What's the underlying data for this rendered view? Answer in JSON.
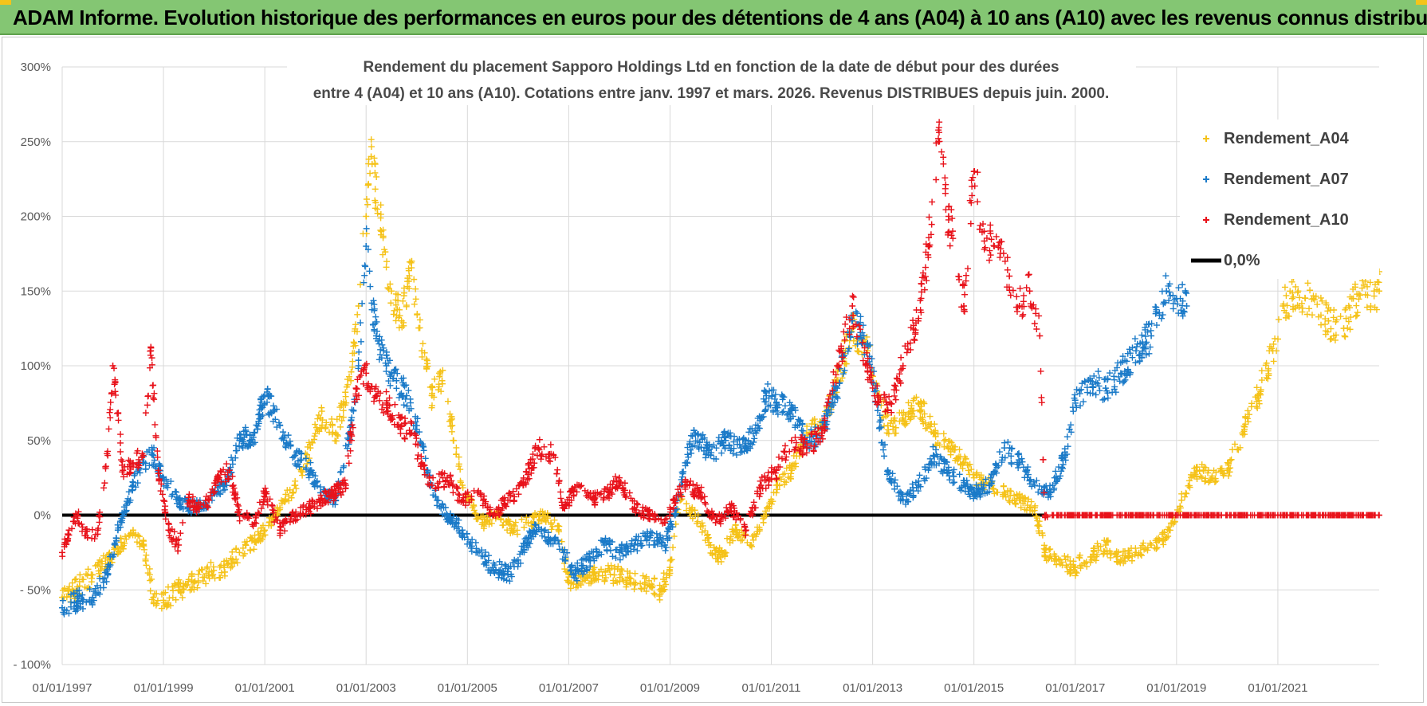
{
  "banner": {
    "title": "ADAM Informe. Evolution historique des performances en euros pour des détentions de 4 ans (A04) à 10 ans (A10) avec les revenus connus distribués",
    "background": "#84c673",
    "accent": "#f4c41a"
  },
  "chart_data": {
    "type": "scatter",
    "title_line1": "Rendement du placement Sapporo Holdings Ltd en fonction de la date de début pour des durées",
    "title_line2": "entre 4 (A04) et 10 ans (A10).  Cotations entre janv. 1997 et mars. 2026.  Revenus DISTRIBUES depuis juin. 2000.",
    "xlabel": "",
    "ylabel": "",
    "xlim": [
      1997.0,
      2023.0
    ],
    "ylim": [
      -100,
      300
    ],
    "y_ticks": [
      300,
      250,
      200,
      150,
      100,
      50,
      0,
      -50,
      -100
    ],
    "y_tick_labels": [
      "300%",
      "250%",
      "200%",
      "150%",
      "100%",
      "50%",
      "0%",
      "- 50%",
      "- 100%"
    ],
    "x_ticks": [
      1997,
      1999,
      2001,
      2003,
      2005,
      2007,
      2009,
      2011,
      2013,
      2015,
      2017,
      2019,
      2021
    ],
    "x_tick_labels": [
      "01/01/1997",
      "01/01/1999",
      "01/01/2001",
      "01/01/2003",
      "01/01/2005",
      "01/01/2007",
      "01/01/2009",
      "01/01/2011",
      "01/01/2013",
      "01/01/2015",
      "01/01/2017",
      "01/01/2019",
      "01/01/2021"
    ],
    "grid": true,
    "legend_position": "top-right",
    "series": [
      {
        "name": "Rendement_A04",
        "color": "#f5c218",
        "points": [
          [
            1997.0,
            -55
          ],
          [
            1997.3,
            -48
          ],
          [
            1997.6,
            -40
          ],
          [
            1997.9,
            -30
          ],
          [
            1998.1,
            -22
          ],
          [
            1998.4,
            -10
          ],
          [
            1998.6,
            -20
          ],
          [
            1998.8,
            -55
          ],
          [
            1999.0,
            -57
          ],
          [
            1999.3,
            -50
          ],
          [
            1999.6,
            -45
          ],
          [
            1999.9,
            -38
          ],
          [
            2000.2,
            -35
          ],
          [
            2000.5,
            -25
          ],
          [
            2000.8,
            -18
          ],
          [
            2001.0,
            -10
          ],
          [
            2001.3,
            5
          ],
          [
            2001.6,
            20
          ],
          [
            2001.9,
            45
          ],
          [
            2002.1,
            65
          ],
          [
            2002.4,
            55
          ],
          [
            2002.7,
            90
          ],
          [
            2002.85,
            140
          ],
          [
            2003.0,
            200
          ],
          [
            2003.1,
            240
          ],
          [
            2003.3,
            190
          ],
          [
            2003.5,
            150
          ],
          [
            2003.7,
            130
          ],
          [
            2003.9,
            170
          ],
          [
            2004.1,
            110
          ],
          [
            2004.3,
            80
          ],
          [
            2004.5,
            90
          ],
          [
            2004.7,
            60
          ],
          [
            2004.9,
            20
          ],
          [
            2005.1,
            5
          ],
          [
            2005.3,
            -5
          ],
          [
            2005.6,
            0
          ],
          [
            2005.9,
            -10
          ],
          [
            2006.2,
            -5
          ],
          [
            2006.5,
            0
          ],
          [
            2006.8,
            -10
          ],
          [
            2007.0,
            -45
          ],
          [
            2007.3,
            -40
          ],
          [
            2007.6,
            -38
          ],
          [
            2007.9,
            -40
          ],
          [
            2008.2,
            -42
          ],
          [
            2008.5,
            -45
          ],
          [
            2008.8,
            -50
          ],
          [
            2009.0,
            -35
          ],
          [
            2009.2,
            10
          ],
          [
            2009.5,
            0
          ],
          [
            2009.8,
            -20
          ],
          [
            2010.0,
            -28
          ],
          [
            2010.3,
            -10
          ],
          [
            2010.6,
            -20
          ],
          [
            2010.9,
            0
          ],
          [
            2011.1,
            20
          ],
          [
            2011.4,
            30
          ],
          [
            2011.7,
            55
          ],
          [
            2012.0,
            60
          ],
          [
            2012.3,
            90
          ],
          [
            2012.6,
            125
          ],
          [
            2012.9,
            110
          ],
          [
            2013.1,
            80
          ],
          [
            2013.3,
            60
          ],
          [
            2013.6,
            65
          ],
          [
            2013.9,
            75
          ],
          [
            2014.2,
            55
          ],
          [
            2014.5,
            45
          ],
          [
            2014.8,
            35
          ],
          [
            2015.0,
            25
          ],
          [
            2015.3,
            20
          ],
          [
            2015.6,
            15
          ],
          [
            2015.9,
            10
          ],
          [
            2016.2,
            5
          ],
          [
            2016.4,
            -25
          ],
          [
            2016.7,
            -30
          ],
          [
            2017.0,
            -35
          ],
          [
            2017.3,
            -28
          ],
          [
            2017.6,
            -20
          ],
          [
            2017.9,
            -30
          ],
          [
            2018.2,
            -25
          ],
          [
            2018.5,
            -20
          ],
          [
            2018.8,
            -15
          ],
          [
            2019.1,
            10
          ],
          [
            2019.4,
            30
          ],
          [
            2019.7,
            25
          ],
          [
            2020.0,
            30
          ],
          [
            2020.3,
            55
          ],
          [
            2020.6,
            80
          ],
          [
            2020.9,
            110
          ],
          [
            2021.1,
            140
          ],
          [
            2021.4,
            150
          ],
          [
            2021.7,
            145
          ],
          [
            2022.0,
            130
          ],
          [
            2022.3,
            125
          ],
          [
            2022.6,
            148
          ],
          [
            2022.9,
            150
          ],
          [
            2023.0,
            150
          ]
        ]
      },
      {
        "name": "Rendement_A07",
        "color": "#1a7ac8",
        "points": [
          [
            1997.0,
            -62
          ],
          [
            1997.3,
            -58
          ],
          [
            1997.6,
            -55
          ],
          [
            1997.9,
            -40
          ],
          [
            1998.1,
            -10
          ],
          [
            1998.4,
            20
          ],
          [
            1998.6,
            35
          ],
          [
            1998.8,
            40
          ],
          [
            1999.0,
            25
          ],
          [
            1999.3,
            10
          ],
          [
            1999.6,
            5
          ],
          [
            1999.9,
            10
          ],
          [
            2000.2,
            20
          ],
          [
            2000.5,
            50
          ],
          [
            2000.8,
            55
          ],
          [
            2001.0,
            80
          ],
          [
            2001.3,
            60
          ],
          [
            2001.6,
            40
          ],
          [
            2001.9,
            30
          ],
          [
            2002.1,
            15
          ],
          [
            2002.4,
            10
          ],
          [
            2002.7,
            60
          ],
          [
            2002.85,
            100
          ],
          [
            2003.0,
            180
          ],
          [
            2003.2,
            120
          ],
          [
            2003.4,
            100
          ],
          [
            2003.6,
            90
          ],
          [
            2003.8,
            80
          ],
          [
            2004.0,
            60
          ],
          [
            2004.2,
            30
          ],
          [
            2004.4,
            10
          ],
          [
            2004.6,
            0
          ],
          [
            2004.9,
            -10
          ],
          [
            2005.2,
            -25
          ],
          [
            2005.5,
            -35
          ],
          [
            2005.8,
            -40
          ],
          [
            2006.0,
            -30
          ],
          [
            2006.3,
            -10
          ],
          [
            2006.6,
            -15
          ],
          [
            2006.9,
            -25
          ],
          [
            2007.1,
            -40
          ],
          [
            2007.4,
            -30
          ],
          [
            2007.7,
            -20
          ],
          [
            2008.0,
            -25
          ],
          [
            2008.3,
            -20
          ],
          [
            2008.6,
            -15
          ],
          [
            2008.9,
            -20
          ],
          [
            2009.1,
            0
          ],
          [
            2009.3,
            35
          ],
          [
            2009.5,
            55
          ],
          [
            2009.8,
            40
          ],
          [
            2010.1,
            50
          ],
          [
            2010.4,
            45
          ],
          [
            2010.7,
            55
          ],
          [
            2010.9,
            80
          ],
          [
            2011.1,
            75
          ],
          [
            2011.4,
            70
          ],
          [
            2011.7,
            50
          ],
          [
            2012.0,
            55
          ],
          [
            2012.3,
            85
          ],
          [
            2012.6,
            130
          ],
          [
            2012.9,
            115
          ],
          [
            2013.1,
            70
          ],
          [
            2013.3,
            30
          ],
          [
            2013.6,
            10
          ],
          [
            2013.9,
            20
          ],
          [
            2014.2,
            40
          ],
          [
            2014.5,
            30
          ],
          [
            2014.8,
            20
          ],
          [
            2015.0,
            15
          ],
          [
            2015.3,
            20
          ],
          [
            2015.6,
            45
          ],
          [
            2015.9,
            35
          ],
          [
            2016.2,
            20
          ],
          [
            2016.5,
            15
          ],
          [
            2016.8,
            40
          ],
          [
            2017.0,
            75
          ],
          [
            2017.3,
            90
          ],
          [
            2017.6,
            85
          ],
          [
            2017.9,
            95
          ],
          [
            2018.2,
            110
          ],
          [
            2018.5,
            120
          ],
          [
            2018.8,
            150
          ],
          [
            2019.0,
            145
          ],
          [
            2019.2,
            140
          ]
        ]
      },
      {
        "name": "Rendement_A10",
        "color": "#e8121a",
        "points": [
          [
            1997.0,
            -25
          ],
          [
            1997.3,
            0
          ],
          [
            1997.5,
            -15
          ],
          [
            1997.7,
            -10
          ],
          [
            1997.9,
            40
          ],
          [
            1998.0,
            100
          ],
          [
            1998.2,
            30
          ],
          [
            1998.4,
            35
          ],
          [
            1998.6,
            40
          ],
          [
            1998.75,
            110
          ],
          [
            1998.9,
            30
          ],
          [
            1999.1,
            -10
          ],
          [
            1999.3,
            -20
          ],
          [
            1999.5,
            10
          ],
          [
            1999.7,
            5
          ],
          [
            1999.9,
            10
          ],
          [
            2000.1,
            25
          ],
          [
            2000.3,
            30
          ],
          [
            2000.5,
            0
          ],
          [
            2000.8,
            -5
          ],
          [
            2001.0,
            15
          ],
          [
            2001.3,
            -10
          ],
          [
            2001.6,
            0
          ],
          [
            2001.9,
            5
          ],
          [
            2002.1,
            10
          ],
          [
            2002.4,
            15
          ],
          [
            2002.6,
            20
          ],
          [
            2002.8,
            85
          ],
          [
            2003.0,
            95
          ],
          [
            2003.2,
            80
          ],
          [
            2003.4,
            75
          ],
          [
            2003.7,
            60
          ],
          [
            2003.9,
            55
          ],
          [
            2004.1,
            35
          ],
          [
            2004.3,
            20
          ],
          [
            2004.6,
            25
          ],
          [
            2004.9,
            10
          ],
          [
            2005.2,
            15
          ],
          [
            2005.5,
            0
          ],
          [
            2005.8,
            10
          ],
          [
            2006.1,
            20
          ],
          [
            2006.4,
            45
          ],
          [
            2006.7,
            40
          ],
          [
            2006.9,
            5
          ],
          [
            2007.2,
            20
          ],
          [
            2007.5,
            10
          ],
          [
            2007.8,
            15
          ],
          [
            2008.0,
            25
          ],
          [
            2008.3,
            5
          ],
          [
            2008.6,
            0
          ],
          [
            2008.9,
            -5
          ],
          [
            2009.1,
            10
          ],
          [
            2009.3,
            20
          ],
          [
            2009.6,
            15
          ],
          [
            2009.9,
            -5
          ],
          [
            2010.2,
            5
          ],
          [
            2010.5,
            -10
          ],
          [
            2010.8,
            20
          ],
          [
            2011.1,
            30
          ],
          [
            2011.4,
            50
          ],
          [
            2011.7,
            45
          ],
          [
            2012.0,
            55
          ],
          [
            2012.3,
            100
          ],
          [
            2012.6,
            140
          ],
          [
            2012.9,
            100
          ],
          [
            2013.1,
            80
          ],
          [
            2013.3,
            70
          ],
          [
            2013.6,
            100
          ],
          [
            2013.9,
            130
          ],
          [
            2014.1,
            180
          ],
          [
            2014.3,
            250
          ],
          [
            2014.5,
            200
          ],
          [
            2014.8,
            140
          ],
          [
            2015.0,
            230
          ],
          [
            2015.2,
            190
          ],
          [
            2015.4,
            180
          ],
          [
            2015.7,
            160
          ],
          [
            2015.9,
            140
          ],
          [
            2016.1,
            150
          ],
          [
            2016.3,
            120
          ],
          [
            2016.4,
            0
          ],
          [
            2017.0,
            0
          ],
          [
            2018.0,
            0
          ],
          [
            2019.0,
            0
          ],
          [
            2020.0,
            0
          ],
          [
            2021.0,
            0
          ],
          [
            2022.0,
            0
          ],
          [
            2023.0,
            0
          ]
        ]
      },
      {
        "name": "0,0%",
        "color": "#000000",
        "points": [
          [
            1997.0,
            0
          ],
          [
            2016.4,
            0
          ]
        ]
      }
    ]
  }
}
